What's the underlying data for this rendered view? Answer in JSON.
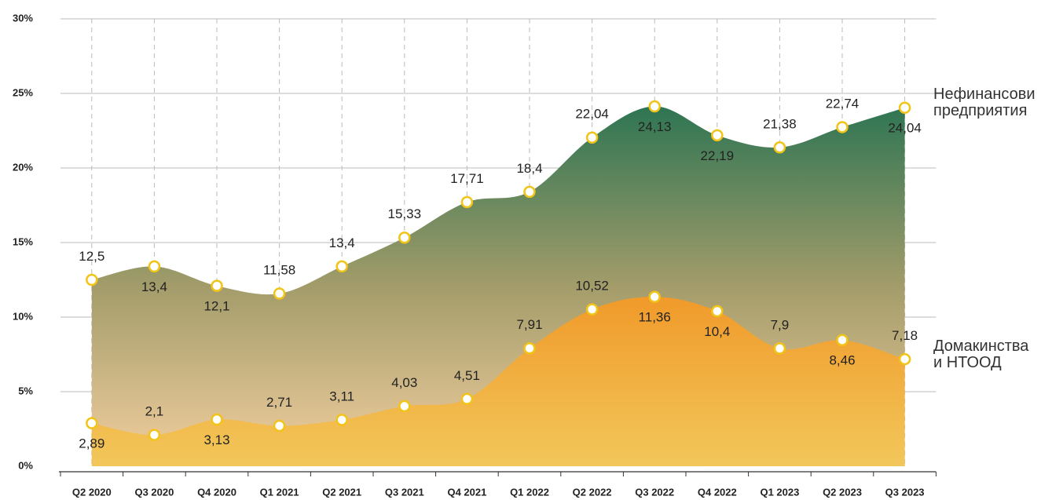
{
  "chart_data": {
    "type": "area",
    "categories": [
      "Q2 2020",
      "Q3 2020",
      "Q4 2020",
      "Q1 2021",
      "Q2 2021",
      "Q3 2021",
      "Q4 2021",
      "Q1 2022",
      "Q2 2022",
      "Q3 2022",
      "Q4 2022",
      "Q1 2023",
      "Q2 2023",
      "Q3 2023"
    ],
    "series": [
      {
        "name": "Нефинансови предприятия",
        "color": "#2e7553",
        "values": [
          12.5,
          13.4,
          12.1,
          11.58,
          13.4,
          15.33,
          17.71,
          18.4,
          22.04,
          24.13,
          22.19,
          21.38,
          22.74,
          24.04
        ],
        "value_labels": [
          "12,5",
          "13,4",
          "12,1",
          "11,58",
          "13,4",
          "15,33",
          "17,71",
          "18,4",
          "22,04",
          "24,13",
          "22,19",
          "21,38",
          "22,74",
          "24,04"
        ]
      },
      {
        "name": "Домакинства и НТООД",
        "color": "#f0a830",
        "values": [
          2.89,
          2.1,
          3.13,
          2.71,
          3.11,
          4.03,
          4.51,
          7.91,
          10.52,
          11.36,
          10.4,
          7.9,
          8.46,
          7.18
        ],
        "value_labels": [
          "2,89",
          "2,1",
          "3,13",
          "2,71",
          "3,11",
          "4,03",
          "4,51",
          "7,91",
          "10,52",
          "11,36",
          "10,4",
          "7,9",
          "8,46",
          "7,18"
        ]
      }
    ],
    "ylim": [
      0,
      30
    ],
    "yticks": [
      {
        "value": 0,
        "label": "0%"
      },
      {
        "value": 5,
        "label": "5%"
      },
      {
        "value": 10,
        "label": "10%"
      },
      {
        "value": 15,
        "label": "15%"
      },
      {
        "value": 20,
        "label": "20%"
      },
      {
        "value": 25,
        "label": "25%"
      },
      {
        "value": 30,
        "label": "30%"
      }
    ],
    "grid": true
  }
}
